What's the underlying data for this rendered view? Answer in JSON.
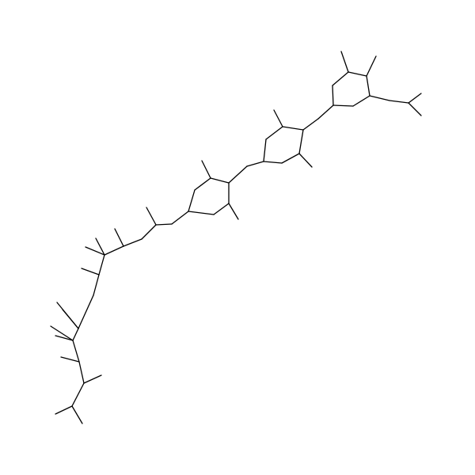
{
  "structure": {
    "kind": "skeletal-formula",
    "atom_labels": [],
    "line_color": "#000000",
    "background": "#ffffff"
  }
}
